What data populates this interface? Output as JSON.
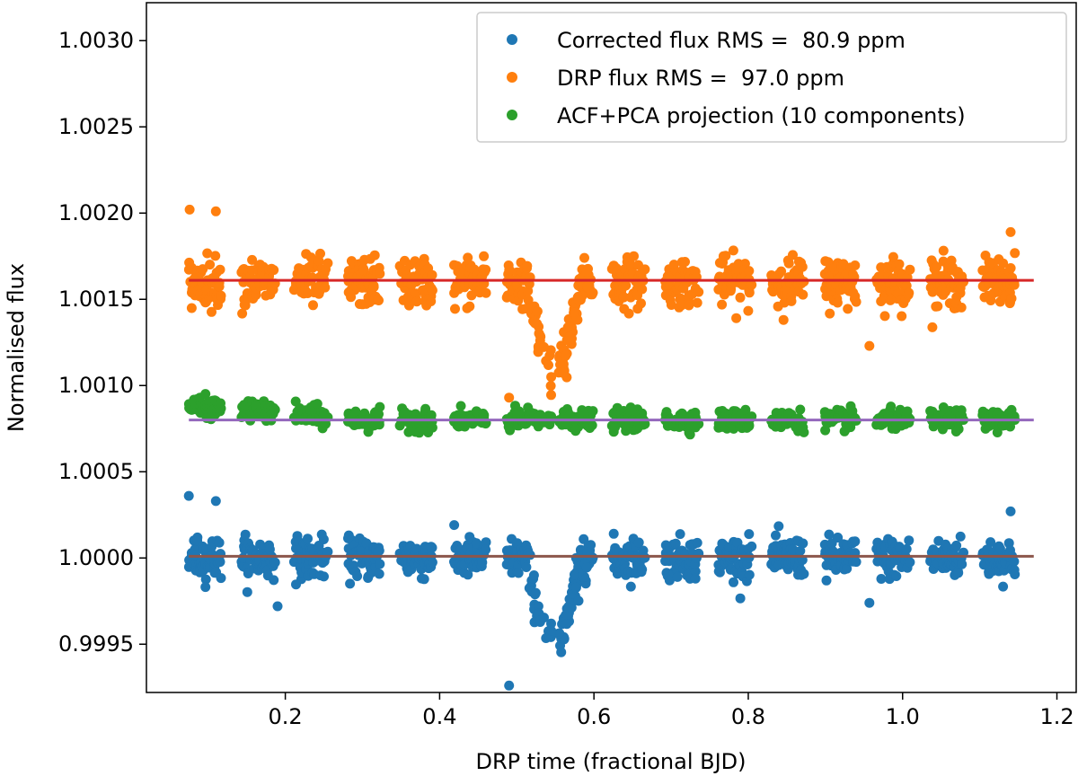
{
  "chart_data": {
    "type": "scatter",
    "xlabel": "DRP time (fractional BJD)",
    "ylabel": "Normalised flux",
    "xlim": [
      0.02,
      1.225
    ],
    "ylim": [
      0.99922,
      1.00322
    ],
    "x_ticks": [
      0.2,
      0.4,
      0.6,
      0.8,
      1.0,
      1.2
    ],
    "x_tick_labels": [
      "0.2",
      "0.4",
      "0.6",
      "0.8",
      "1.0",
      "1.2"
    ],
    "y_ticks": [
      0.9995,
      1.0,
      1.0005,
      1.001,
      1.0015,
      1.002,
      1.0025,
      1.003
    ],
    "y_tick_labels": [
      "0.9995",
      "1.0000",
      "1.0005",
      "1.0010",
      "1.0015",
      "1.0020",
      "1.0025",
      "1.0030"
    ],
    "orbit_visits": {
      "first_start": 0.075,
      "period": 0.0686,
      "count": 16,
      "visit_duration": 0.042,
      "last_end": 1.17
    },
    "transit": {
      "center": 0.548,
      "half_width": 0.036,
      "depth": 0.00045
    },
    "series": [
      {
        "name": "Corrected flux RMS =  80.9 ppm",
        "color": "#1f77b4",
        "baseline": 1.0,
        "scatter_ppm": 80.9,
        "outliers": [
          [
            0.075,
            1.00036
          ],
          [
            0.11,
            1.00033
          ],
          [
            0.19,
            0.99972
          ],
          [
            0.49,
            0.99926
          ],
          [
            0.957,
            0.99974
          ],
          [
            1.14,
            1.00027
          ]
        ]
      },
      {
        "name": "DRP flux RMS =  97.0 ppm",
        "color": "#ff7f0e",
        "baseline": 1.0016,
        "scatter_ppm": 97.0,
        "outliers": [
          [
            0.076,
            1.00202
          ],
          [
            0.11,
            1.00201
          ],
          [
            0.49,
            1.00093
          ],
          [
            0.957,
            1.00123
          ],
          [
            1.14,
            1.00189
          ]
        ]
      },
      {
        "name": "ACF+PCA projection (10 components)",
        "color": "#2ca02c",
        "baseline": 1.0008,
        "scatter_ppm": 28.0
      }
    ],
    "fit_lines": [
      {
        "color": "#d62728",
        "y": 1.00161,
        "x_range": [
          0.075,
          1.17
        ]
      },
      {
        "color": "#9467bd",
        "y": 1.0008,
        "x_range": [
          0.075,
          1.17
        ]
      },
      {
        "color": "#8c564b",
        "y": 1.00001,
        "x_range": [
          0.075,
          1.17
        ]
      }
    ],
    "legend_location": "upper-right"
  }
}
